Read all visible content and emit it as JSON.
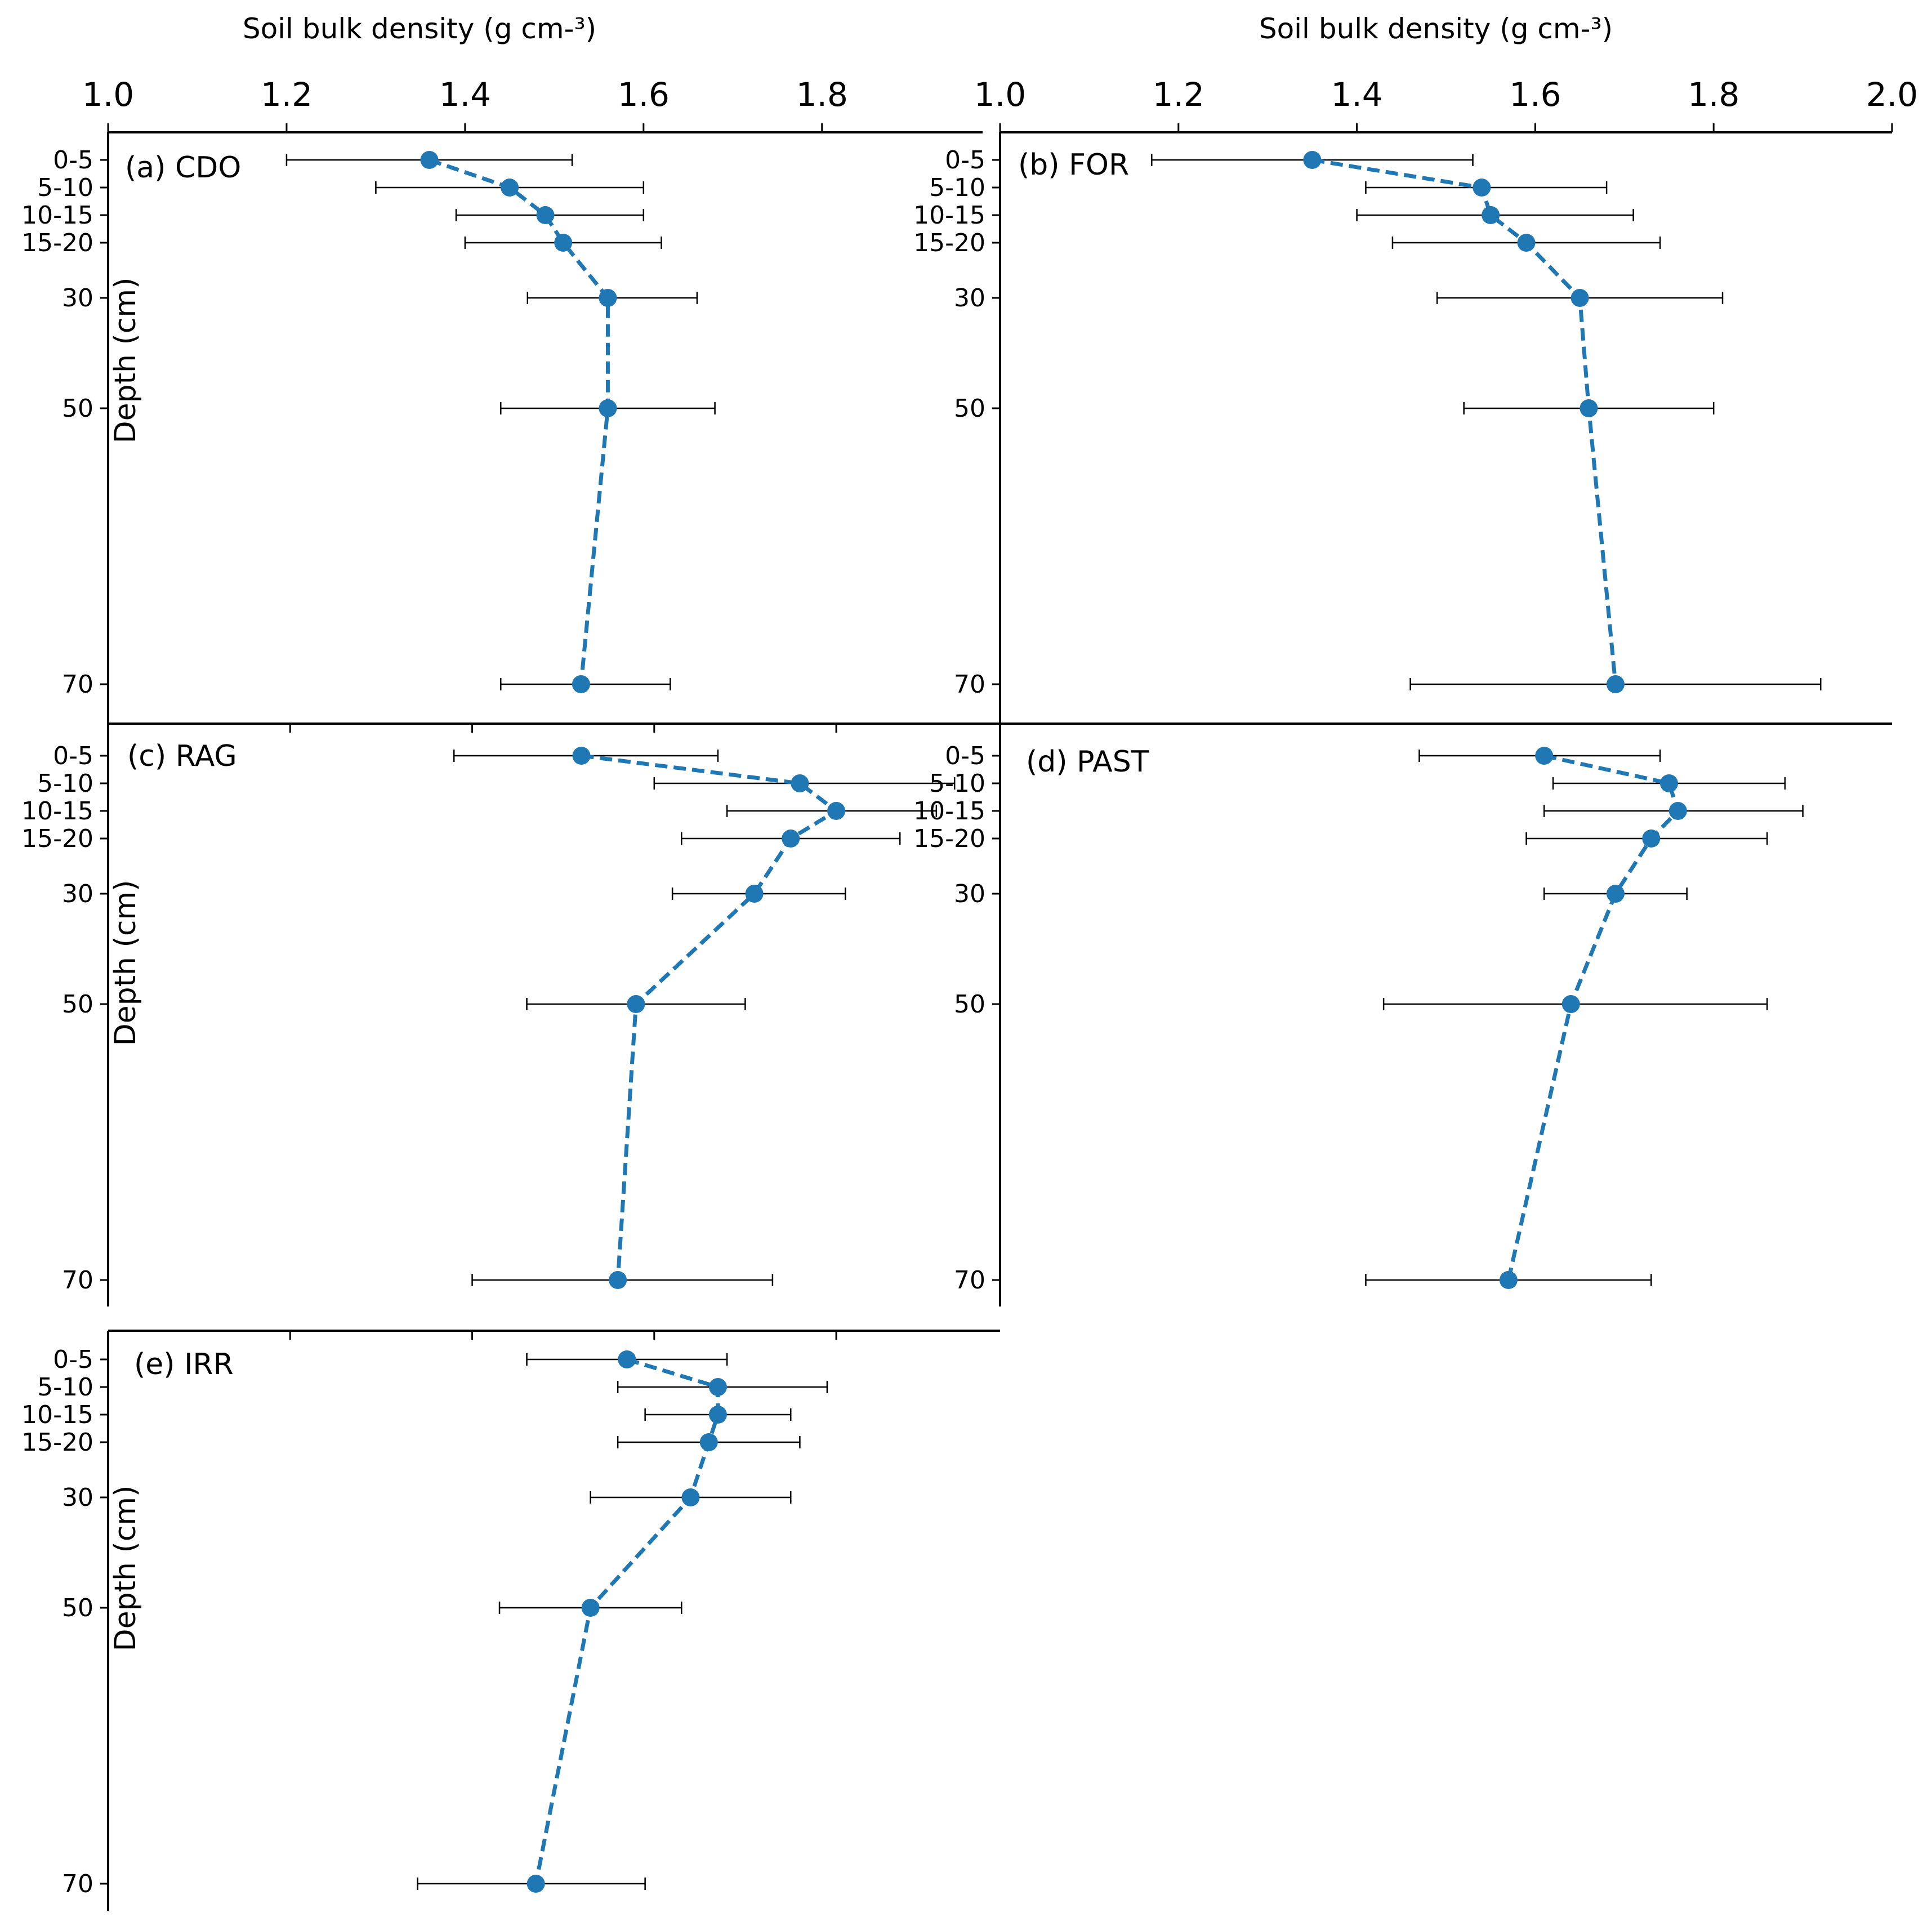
{
  "chart_data": {
    "type": "scatter",
    "title": "",
    "xlabel": "Soil bulk density (g cm-³)",
    "ylabel": "Depth (cm)",
    "depth_categories": [
      "0-5",
      "5-10",
      "10-15",
      "15-20",
      "30",
      "50",
      "70"
    ],
    "colors": {
      "series": "#1f77b4",
      "errorbar": "#000000",
      "axis": "#000000"
    },
    "panels": [
      {
        "label": "(a) CDO",
        "xlim": [
          1.0,
          1.98
        ],
        "x_ticks": [
          "1.0",
          "1.2",
          "1.4",
          "1.6",
          "1.8"
        ],
        "show_x_tick_labels": true,
        "x_tick_direction": "out",
        "values": [
          1.36,
          1.45,
          1.49,
          1.51,
          1.56,
          1.56,
          1.53
        ],
        "err_low": [
          1.2,
          1.3,
          1.39,
          1.4,
          1.47,
          1.44,
          1.44
        ],
        "err_high": [
          1.52,
          1.6,
          1.6,
          1.62,
          1.66,
          1.68,
          1.63
        ]
      },
      {
        "label": "(b) FOR",
        "xlim": [
          1.0,
          2.0
        ],
        "x_ticks": [
          "1.0",
          "1.2",
          "1.4",
          "1.6",
          "1.8",
          "2.0"
        ],
        "show_x_tick_labels": true,
        "x_tick_direction": "out",
        "values": [
          1.35,
          1.54,
          1.55,
          1.59,
          1.65,
          1.66,
          1.69
        ],
        "err_low": [
          1.17,
          1.41,
          1.4,
          1.44,
          1.49,
          1.52,
          1.46
        ],
        "err_high": [
          1.53,
          1.68,
          1.71,
          1.74,
          1.81,
          1.8,
          1.92
        ]
      },
      {
        "label": "(c) RAG",
        "xlim": [
          1.0,
          1.98
        ],
        "x_ticks": [
          "1.0",
          "1.2",
          "1.4",
          "1.6",
          "1.8"
        ],
        "show_x_tick_labels": false,
        "x_tick_direction": "in",
        "values": [
          1.52,
          1.76,
          1.8,
          1.75,
          1.71,
          1.58,
          1.56
        ],
        "err_low": [
          1.38,
          1.6,
          1.68,
          1.63,
          1.62,
          1.46,
          1.4
        ],
        "err_high": [
          1.67,
          1.93,
          1.91,
          1.87,
          1.81,
          1.7,
          1.73
        ]
      },
      {
        "label": "(d) PAST",
        "xlim": [
          1.0,
          2.0
        ],
        "x_ticks": [
          "1.0",
          "1.2",
          "1.4",
          "1.6",
          "1.8",
          "2.0"
        ],
        "show_x_tick_labels": false,
        "x_tick_direction": "none",
        "values": [
          1.61,
          1.75,
          1.76,
          1.73,
          1.69,
          1.64,
          1.57
        ],
        "err_low": [
          1.47,
          1.62,
          1.61,
          1.59,
          1.61,
          1.43,
          1.41
        ],
        "err_high": [
          1.74,
          1.88,
          1.9,
          1.86,
          1.77,
          1.86,
          1.73
        ]
      },
      {
        "label": "(e) IRR",
        "xlim": [
          1.0,
          1.98
        ],
        "x_ticks": [
          "1.0",
          "1.2",
          "1.4",
          "1.6",
          "1.8"
        ],
        "show_x_tick_labels": false,
        "x_tick_direction": "in",
        "values": [
          1.57,
          1.67,
          1.67,
          1.66,
          1.64,
          1.53,
          1.47
        ],
        "err_low": [
          1.46,
          1.56,
          1.59,
          1.56,
          1.53,
          1.43,
          1.34
        ],
        "err_high": [
          1.68,
          1.79,
          1.75,
          1.76,
          1.75,
          1.63,
          1.59
        ]
      }
    ]
  }
}
